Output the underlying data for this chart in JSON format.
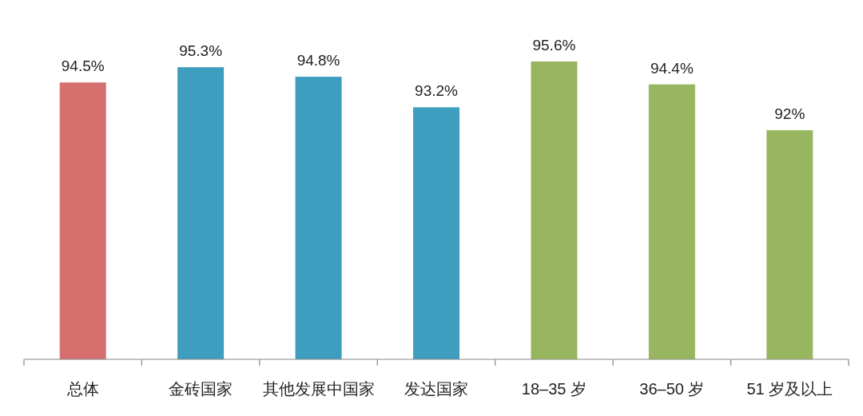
{
  "chart_data": {
    "type": "bar",
    "categories": [
      "总体",
      "金砖国家",
      "其他发展中国家",
      "发达国家",
      "18–35 岁",
      "36–50 岁",
      "51 岁及以上"
    ],
    "values": [
      94.5,
      95.3,
      94.8,
      93.2,
      95.6,
      94.4,
      92
    ],
    "value_labels": [
      "94.5%",
      "95.3%",
      "94.8%",
      "93.2%",
      "95.6%",
      "94.4%",
      "92%"
    ],
    "colors": [
      "#d6706f",
      "#3f9dbf",
      "#3f9dbf",
      "#3f9dbf",
      "#98b660",
      "#98b660",
      "#98b660"
    ],
    "ylim": [
      80,
      95.6
    ],
    "tick_labels": "x"
  }
}
